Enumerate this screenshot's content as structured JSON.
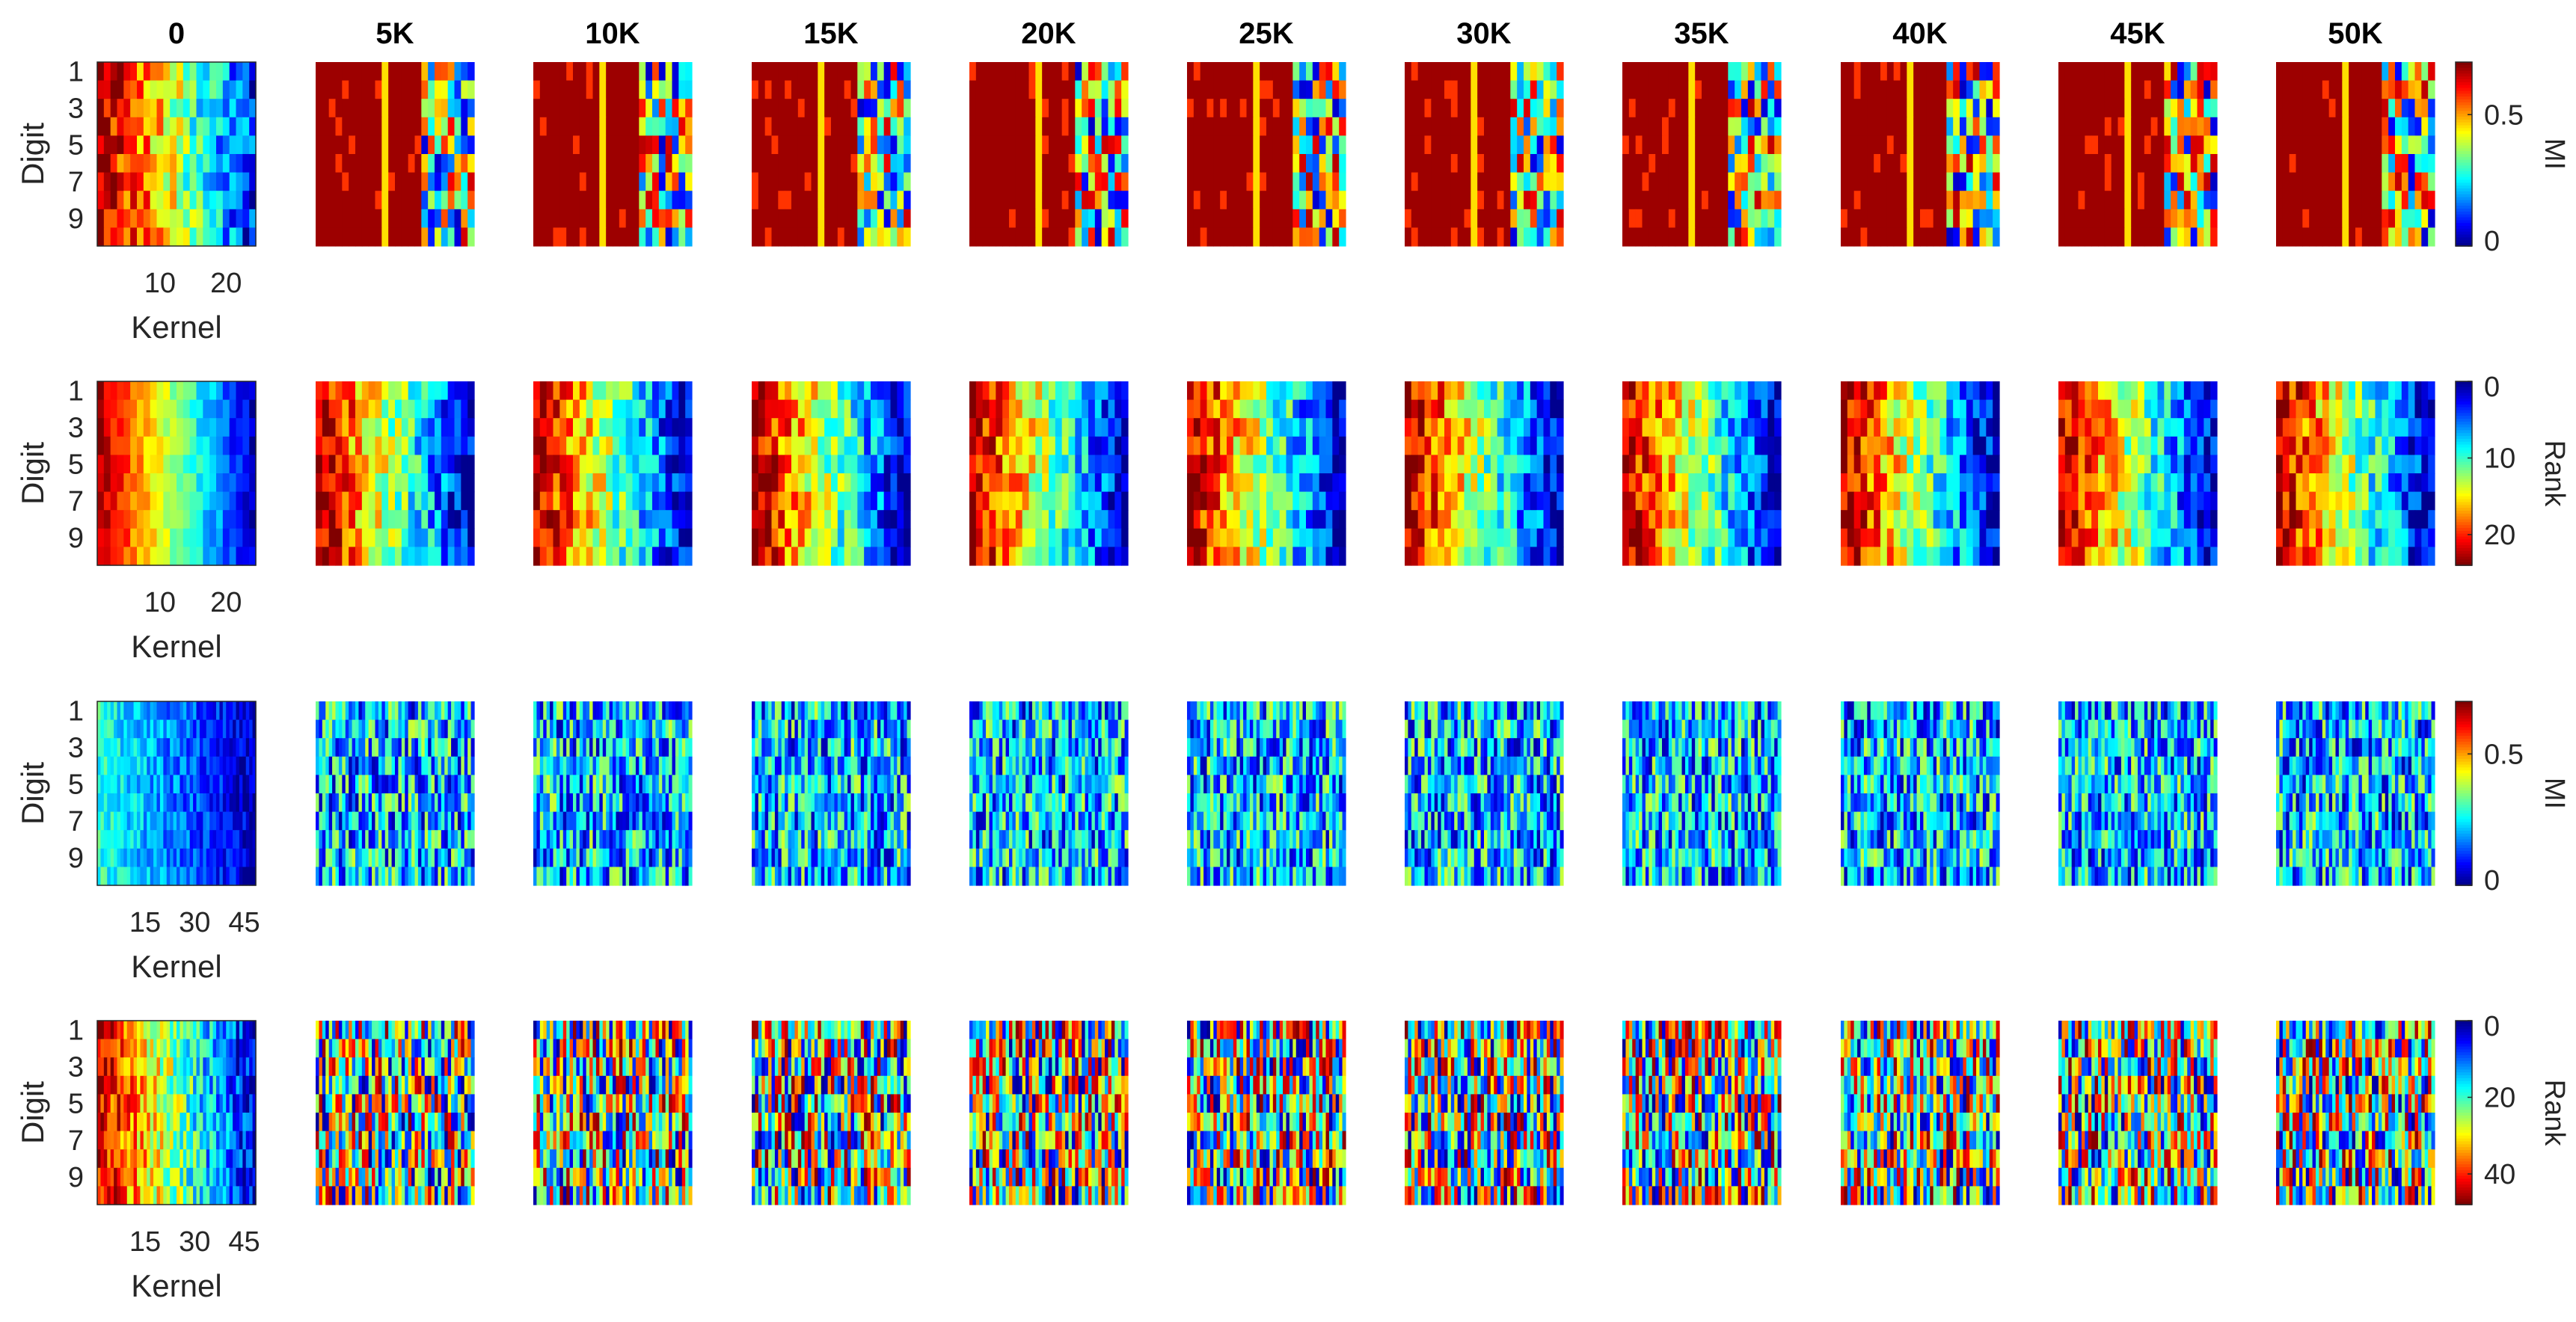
{
  "chart_data": {
    "type": "heatmap",
    "column_titles": [
      "0",
      "5K",
      "10K",
      "15K",
      "20K",
      "25K",
      "30K",
      "35K",
      "40K",
      "45K",
      "50K"
    ],
    "colormap": "jet",
    "colormap_stops": [
      "#00008f",
      "#0000ff",
      "#00ffff",
      "#ffff00",
      "#ff0000",
      "#800000"
    ],
    "rows": [
      {
        "metric": "MI",
        "kernels": 24,
        "digits": 10,
        "ylabel": "Digit",
        "yticks": [
          "1",
          "3",
          "5",
          "7",
          "9"
        ],
        "xlabel": "Kernel",
        "xticks": [
          "10",
          "20"
        ],
        "colorbar": {
          "label": "MI",
          "ticks": [
            "0.5",
            "0"
          ],
          "range": [
            0,
            0.7
          ]
        }
      },
      {
        "metric": "Rank",
        "kernels": 24,
        "digits": 10,
        "ylabel": "Digit",
        "yticks": [
          "1",
          "3",
          "5",
          "7",
          "9"
        ],
        "xlabel": "Kernel",
        "xticks": [
          "10",
          "20"
        ],
        "colorbar": {
          "label": "Rank",
          "ticks": [
            "0",
            "10",
            "20"
          ],
          "range": [
            0,
            24
          ],
          "reversed": true
        }
      },
      {
        "metric": "MI",
        "kernels": 48,
        "digits": 10,
        "ylabel": "Digit",
        "yticks": [
          "1",
          "3",
          "5",
          "7",
          "9"
        ],
        "xlabel": "Kernel",
        "xticks": [
          "15",
          "30",
          "45"
        ],
        "colorbar": {
          "label": "MI",
          "ticks": [
            "0.5",
            "0"
          ],
          "range": [
            0,
            0.7
          ]
        }
      },
      {
        "metric": "Rank",
        "kernels": 48,
        "digits": 10,
        "ylabel": "Digit",
        "yticks": [
          "1",
          "3",
          "5",
          "7",
          "9"
        ],
        "xlabel": "Kernel",
        "xticks": [
          "15",
          "30",
          "45"
        ],
        "colorbar": {
          "label": "Rank",
          "ticks": [
            "0",
            "20",
            "40"
          ],
          "range": [
            0,
            48
          ],
          "reversed": true
        }
      }
    ]
  }
}
